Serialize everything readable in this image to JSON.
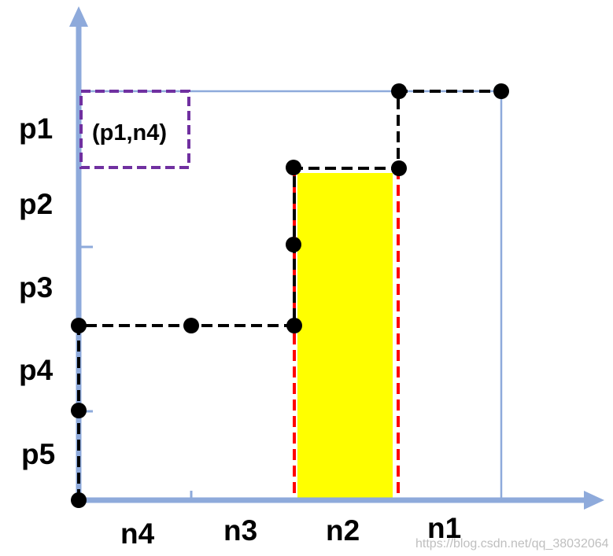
{
  "colors": {
    "axis": "#8eaadb",
    "grid": "#8eaadb",
    "path": "#000000",
    "boundary": "#ff0000",
    "highlight": "#ffff00",
    "box": "#7030a0",
    "dot": "#000000"
  },
  "y_labels": [
    "p1",
    "p2",
    "p3",
    "p4",
    "p5"
  ],
  "x_labels": [
    "n4",
    "n3",
    "n2",
    "n1"
  ],
  "box_label": "(p1,n4)",
  "watermark": "https://blog.csdn.net/qq_38032064"
}
